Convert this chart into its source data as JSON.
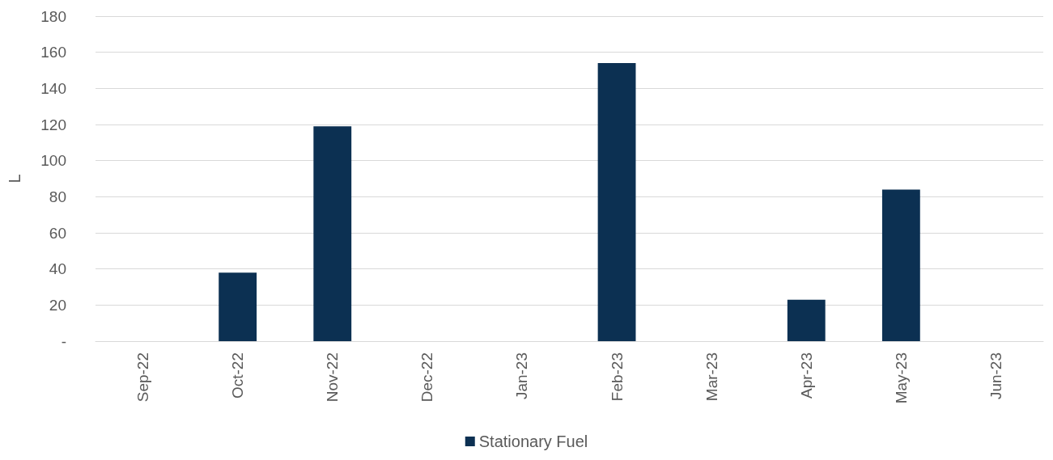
{
  "chart_data": {
    "type": "bar",
    "ylabel": "L",
    "categories": [
      "Sep-22",
      "Oct-22",
      "Nov-22",
      "Dec-22",
      "Jan-23",
      "Feb-23",
      "Mar-23",
      "Apr-23",
      "May-23",
      "Jun-23"
    ],
    "series": [
      {
        "name": "Stationary Fuel",
        "color": "#0c3052",
        "values": [
          0,
          38,
          119,
          0,
          0,
          154,
          0,
          23,
          84,
          0
        ]
      }
    ],
    "ylim": [
      0,
      180
    ],
    "yticks": [
      {
        "value": 0,
        "label": "-"
      },
      20,
      40,
      60,
      80,
      100,
      120,
      140,
      160,
      180
    ],
    "grid": "y",
    "legend": "bottom"
  }
}
